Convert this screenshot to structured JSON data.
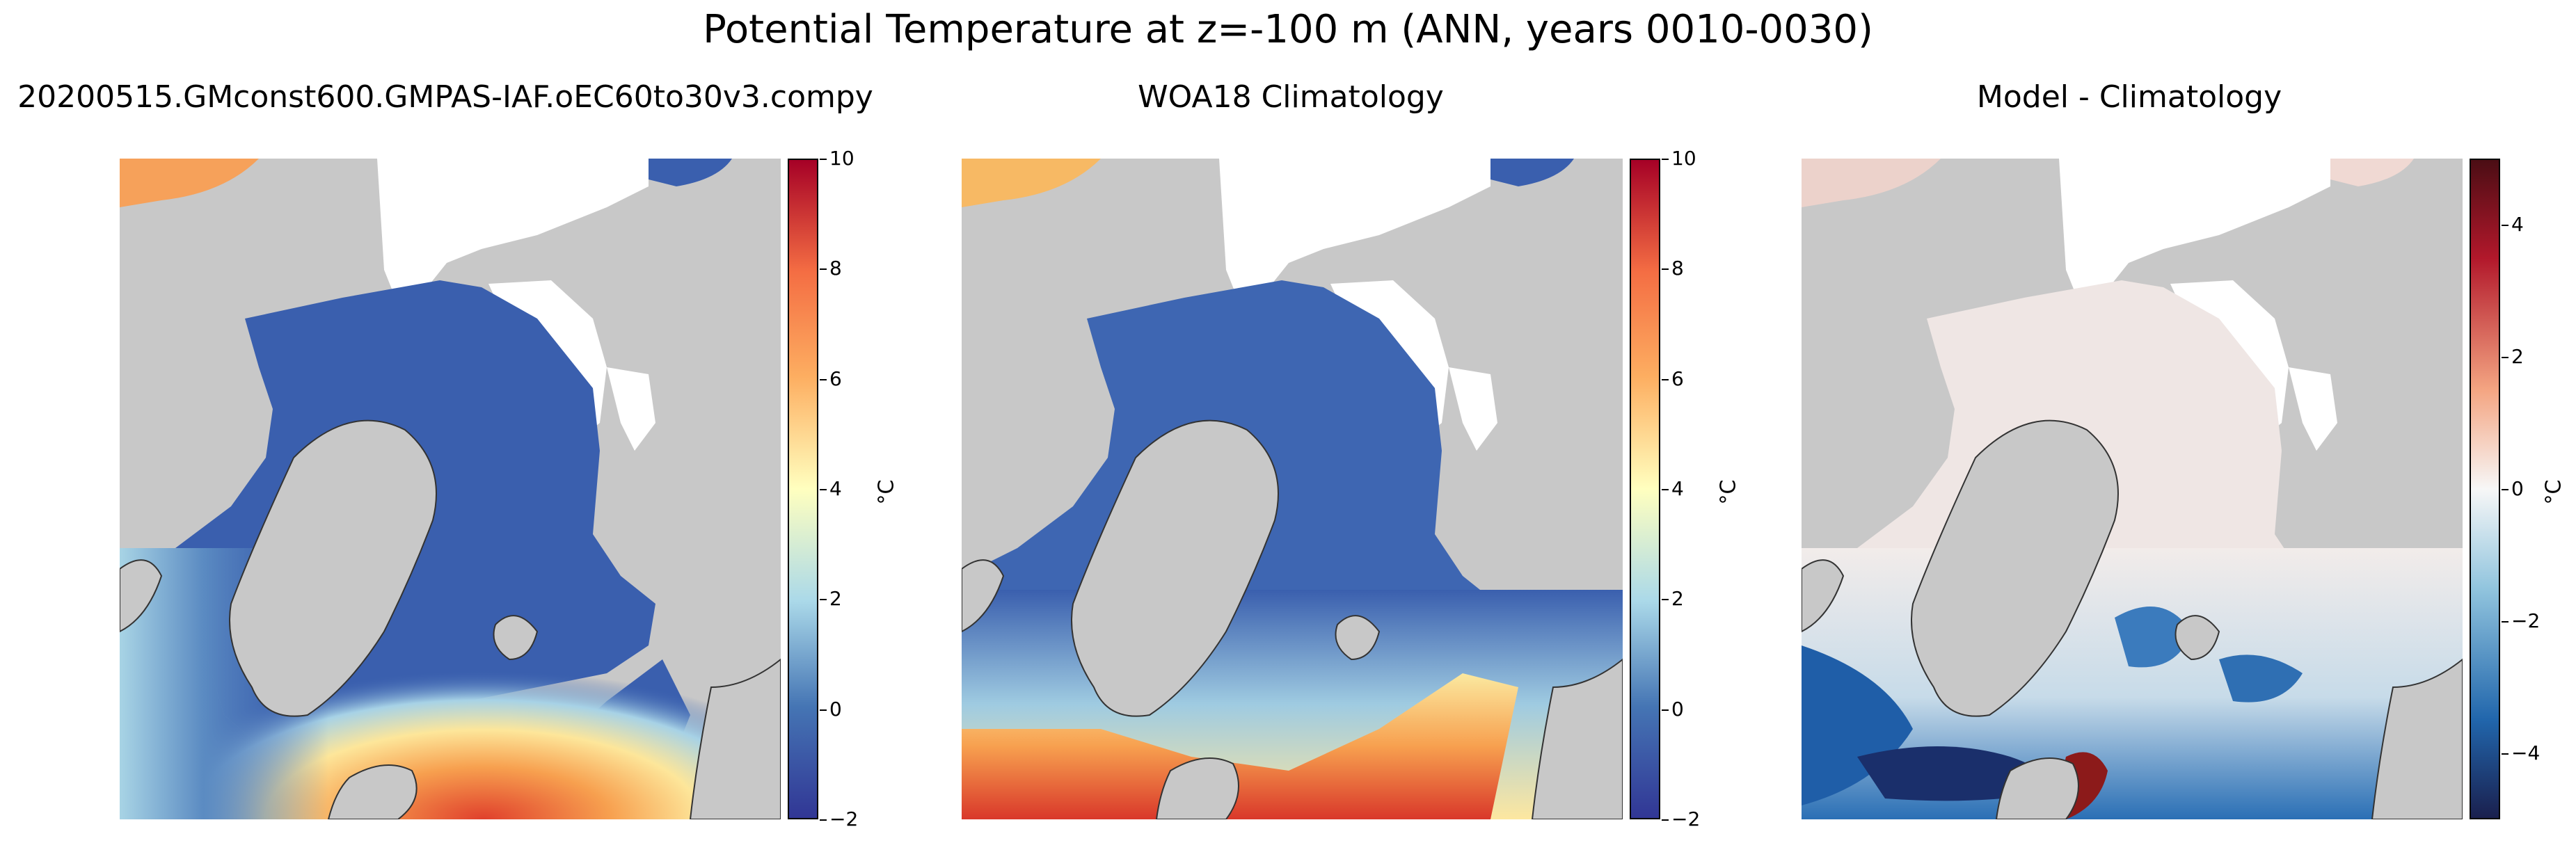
{
  "figure": {
    "title": "Potential Temperature at z=-100 m (ANN, years 0010-0030)"
  },
  "panels": [
    {
      "title": "20200515.GMconst600.GMPAS-IAF.oEC60to30v3.compy",
      "colorbar": {
        "ticks": [
          "10",
          "8",
          "6",
          "4",
          "2",
          "0",
          "−2"
        ],
        "tick_values": [
          10,
          8,
          6,
          4,
          2,
          0,
          -2
        ],
        "range": [
          -2,
          10
        ],
        "unit": "°C",
        "colormap": "RdYlBu_r"
      }
    },
    {
      "title": "WOA18 Climatology",
      "colorbar": {
        "ticks": [
          "10",
          "8",
          "6",
          "4",
          "2",
          "0",
          "−2"
        ],
        "tick_values": [
          10,
          8,
          6,
          4,
          2,
          0,
          -2
        ],
        "range": [
          -2,
          10
        ],
        "unit": "°C",
        "colormap": "RdYlBu_r"
      }
    },
    {
      "title": "Model - Climatology",
      "colorbar": {
        "ticks": [
          "4",
          "2",
          "0",
          "−2",
          "−4"
        ],
        "tick_values": [
          4,
          2,
          0,
          -2,
          -4
        ],
        "range": [
          -5,
          5
        ],
        "unit": "°C",
        "colormap": "RdBu_r"
      }
    }
  ],
  "colors": {
    "land": "#c8c8c8",
    "missing": "#ffffff",
    "cold": "#3a5fae",
    "warm": "#d7302a",
    "diff_zero": "#f2ecea"
  }
}
